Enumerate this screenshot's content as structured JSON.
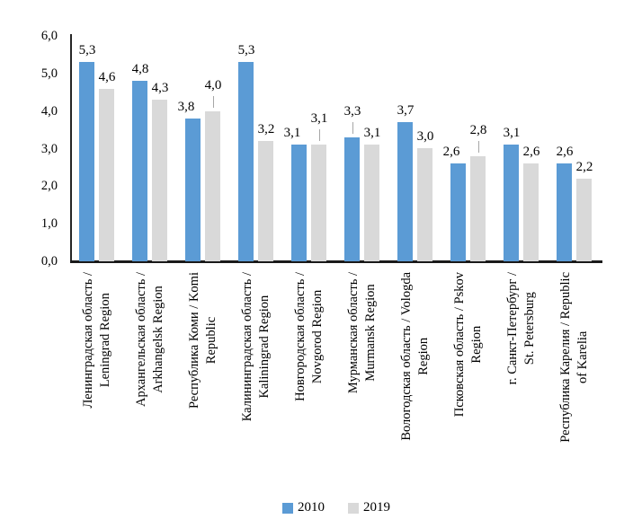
{
  "chart_data": {
    "type": "bar",
    "title": "",
    "xlabel": "",
    "ylabel": "",
    "grid": false,
    "legend_position": "bottom",
    "data_labels": true,
    "decimal_separator": ",",
    "ylim": [
      0,
      6
    ],
    "ytick_step": 1,
    "ytick_labels": [
      "0,0",
      "1,0",
      "2,0",
      "3,0",
      "4,0",
      "5,0",
      "6,0"
    ],
    "categories": [
      "Ленинградская область /\nLeningrad Region",
      "Архангельская область /\nArkhangelsk Region",
      "Республика Коми / Komi\nRepublic",
      "Калининградская область /\nKaliningrad Region",
      "Новгородская область /\nNovgorod Region",
      "Мурманская область /\nMurmansk Region",
      "Вологодская область / Vologda\nRegion",
      "Псковская область / Pskov\nRegion",
      "г. Санкт-Петербург /\nSt. Petersburg",
      "Республика Карелия / Republic\nof Karelia"
    ],
    "series": [
      {
        "name": "2010",
        "color": "#5b9bd5",
        "values": [
          5.3,
          4.8,
          3.8,
          5.3,
          3.1,
          3.3,
          3.7,
          2.6,
          3.1,
          2.6
        ]
      },
      {
        "name": "2019",
        "color": "#d9d9d9",
        "values": [
          4.6,
          4.3,
          4.0,
          3.2,
          3.1,
          3.1,
          3.0,
          2.8,
          2.6,
          2.2
        ]
      }
    ],
    "label_callouts": [
      {
        "category_index": 2,
        "series_index": 1
      },
      {
        "category_index": 4,
        "series_index": 1
      },
      {
        "category_index": 5,
        "series_index": 0
      },
      {
        "category_index": 7,
        "series_index": 1
      }
    ]
  }
}
